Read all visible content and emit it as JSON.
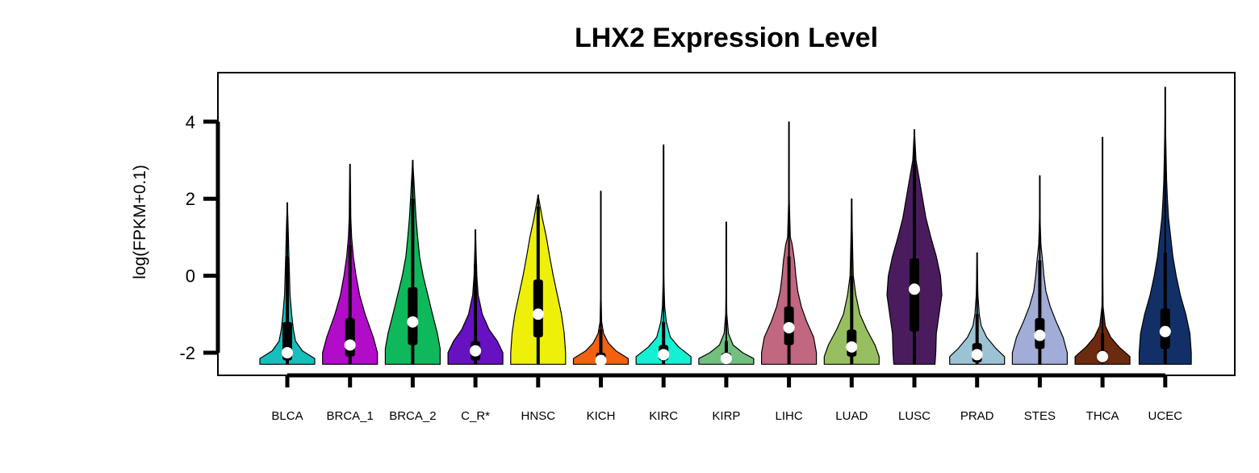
{
  "chart_data": {
    "type": "violin",
    "title": "LHX2 Expression Level",
    "ylabel": "log(FPKM+0.1)",
    "xlabel": "",
    "ylim": [
      -2.6,
      5.2
    ],
    "yticks": [
      -2,
      0,
      2,
      4
    ],
    "grid": false,
    "legend": "none",
    "groups": [
      {
        "name": "BLCA",
        "color": "#17BEBB",
        "min": -2.3,
        "max": 1.9,
        "q1": -2.2,
        "q3": -1.2,
        "median": -2.0,
        "lower_whisker": -2.3,
        "upper_whisker": 0.5,
        "density": [
          [
            -2.3,
            1.0
          ],
          [
            -2.15,
            1.0
          ],
          [
            -1.95,
            0.55
          ],
          [
            -1.7,
            0.3
          ],
          [
            -1.4,
            0.22
          ],
          [
            -1.0,
            0.16
          ],
          [
            -0.5,
            0.1
          ],
          [
            0.0,
            0.08
          ],
          [
            0.5,
            0.06
          ],
          [
            1.0,
            0.04
          ],
          [
            1.5,
            0.02
          ],
          [
            1.9,
            0.0
          ]
        ]
      },
      {
        "name": "BRCA_1",
        "color": "#B10CC8",
        "min": -2.3,
        "max": 2.9,
        "q1": -2.1,
        "q3": -1.1,
        "median": -1.8,
        "lower_whisker": -2.3,
        "upper_whisker": 0.8,
        "density": [
          [
            -2.3,
            1.0
          ],
          [
            -2.0,
            1.0
          ],
          [
            -1.6,
            0.85
          ],
          [
            -1.0,
            0.55
          ],
          [
            -0.5,
            0.35
          ],
          [
            0.0,
            0.22
          ],
          [
            0.5,
            0.12
          ],
          [
            1.0,
            0.06
          ],
          [
            1.5,
            0.03
          ],
          [
            2.2,
            0.02
          ],
          [
            2.9,
            0.0
          ]
        ]
      },
      {
        "name": "BRCA_2",
        "color": "#0FB85A",
        "min": -2.3,
        "max": 3.0,
        "q1": -1.8,
        "q3": -0.3,
        "median": -1.2,
        "lower_whisker": -2.3,
        "upper_whisker": 2.0,
        "density": [
          [
            -2.3,
            1.0
          ],
          [
            -1.9,
            1.0
          ],
          [
            -1.5,
            0.9
          ],
          [
            -1.0,
            0.72
          ],
          [
            -0.5,
            0.55
          ],
          [
            0.0,
            0.38
          ],
          [
            0.5,
            0.25
          ],
          [
            1.0,
            0.18
          ],
          [
            1.5,
            0.12
          ],
          [
            2.0,
            0.08
          ],
          [
            2.5,
            0.04
          ],
          [
            3.0,
            0.0
          ]
        ]
      },
      {
        "name": "C_R*",
        "color": "#6611C2",
        "min": -2.3,
        "max": 1.2,
        "q1": -2.2,
        "q3": -1.7,
        "median": -1.95,
        "lower_whisker": -2.3,
        "upper_whisker": 0.3,
        "density": [
          [
            -2.3,
            1.0
          ],
          [
            -2.0,
            1.0
          ],
          [
            -1.7,
            0.8
          ],
          [
            -1.4,
            0.5
          ],
          [
            -1.0,
            0.25
          ],
          [
            -0.5,
            0.1
          ],
          [
            0.0,
            0.05
          ],
          [
            0.5,
            0.03
          ],
          [
            1.2,
            0.0
          ]
        ]
      },
      {
        "name": "HNSC",
        "color": "#EEF00A",
        "min": -2.3,
        "max": 2.1,
        "q1": -1.6,
        "q3": -0.1,
        "median": -1.0,
        "lower_whisker": -2.3,
        "upper_whisker": 1.8,
        "density": [
          [
            -2.3,
            1.0
          ],
          [
            -2.0,
            1.0
          ],
          [
            -1.5,
            0.95
          ],
          [
            -1.0,
            0.85
          ],
          [
            -0.5,
            0.7
          ],
          [
            0.0,
            0.55
          ],
          [
            0.5,
            0.42
          ],
          [
            1.0,
            0.3
          ],
          [
            1.5,
            0.15
          ],
          [
            2.1,
            0.0
          ]
        ]
      },
      {
        "name": "KICH",
        "color": "#F26012",
        "min": -2.3,
        "max": 2.2,
        "q1": -2.3,
        "q3": -2.0,
        "median": -2.2,
        "lower_whisker": -2.3,
        "upper_whisker": -1.4,
        "density": [
          [
            -2.3,
            1.0
          ],
          [
            -2.15,
            1.0
          ],
          [
            -1.95,
            0.55
          ],
          [
            -1.75,
            0.28
          ],
          [
            -1.5,
            0.1
          ],
          [
            -1.2,
            0.03
          ],
          [
            -0.5,
            0.01
          ],
          [
            2.2,
            0.0
          ]
        ]
      },
      {
        "name": "KIRC",
        "color": "#13F0D2",
        "min": -2.3,
        "max": 3.4,
        "q1": -2.2,
        "q3": -1.8,
        "median": -2.05,
        "lower_whisker": -2.3,
        "upper_whisker": -1.2,
        "density": [
          [
            -2.3,
            1.0
          ],
          [
            -2.1,
            1.0
          ],
          [
            -1.85,
            0.55
          ],
          [
            -1.6,
            0.25
          ],
          [
            -1.2,
            0.1
          ],
          [
            -0.8,
            0.04
          ],
          [
            0.0,
            0.01
          ],
          [
            3.4,
            0.0
          ]
        ]
      },
      {
        "name": "KIRP",
        "color": "#72BF7E",
        "min": -2.3,
        "max": 1.4,
        "q1": -2.25,
        "q3": -2.0,
        "median": -2.15,
        "lower_whisker": -2.3,
        "upper_whisker": -1.7,
        "density": [
          [
            -2.3,
            1.0
          ],
          [
            -2.15,
            1.0
          ],
          [
            -2.0,
            0.6
          ],
          [
            -1.8,
            0.25
          ],
          [
            -1.5,
            0.08
          ],
          [
            -1.0,
            0.02
          ],
          [
            -0.5,
            0.01
          ],
          [
            1.4,
            0.0
          ]
        ]
      },
      {
        "name": "LIHC",
        "color": "#C16780",
        "min": -2.3,
        "max": 4.0,
        "q1": -1.8,
        "q3": -0.8,
        "median": -1.35,
        "lower_whisker": -2.3,
        "upper_whisker": 0.5,
        "density": [
          [
            -2.3,
            1.0
          ],
          [
            -2.0,
            1.0
          ],
          [
            -1.6,
            0.9
          ],
          [
            -1.2,
            0.65
          ],
          [
            -0.8,
            0.45
          ],
          [
            -0.4,
            0.32
          ],
          [
            0.0,
            0.25
          ],
          [
            0.4,
            0.2
          ],
          [
            0.8,
            0.12
          ],
          [
            1.0,
            0.05
          ],
          [
            2.0,
            0.01
          ],
          [
            4.0,
            0.0
          ]
        ]
      },
      {
        "name": "LUAD",
        "color": "#97BF60",
        "min": -2.3,
        "max": 2.0,
        "q1": -2.1,
        "q3": -1.4,
        "median": -1.85,
        "lower_whisker": -2.3,
        "upper_whisker": 0.0,
        "density": [
          [
            -2.3,
            1.0
          ],
          [
            -2.1,
            1.0
          ],
          [
            -1.8,
            0.85
          ],
          [
            -1.4,
            0.55
          ],
          [
            -1.0,
            0.3
          ],
          [
            -0.5,
            0.15
          ],
          [
            0.0,
            0.06
          ],
          [
            0.5,
            0.04
          ],
          [
            1.2,
            0.02
          ],
          [
            2.0,
            0.0
          ]
        ]
      },
      {
        "name": "LUSC",
        "color": "#4A1C5E",
        "min": -2.3,
        "max": 3.8,
        "q1": -1.45,
        "q3": 0.45,
        "median": -0.35,
        "lower_whisker": -2.3,
        "upper_whisker": 2.9,
        "density": [
          [
            -2.3,
            0.75
          ],
          [
            -2.0,
            0.78
          ],
          [
            -1.5,
            0.8
          ],
          [
            -1.0,
            0.9
          ],
          [
            -0.5,
            1.0
          ],
          [
            0.0,
            0.95
          ],
          [
            0.5,
            0.8
          ],
          [
            1.0,
            0.6
          ],
          [
            1.5,
            0.42
          ],
          [
            2.0,
            0.3
          ],
          [
            2.5,
            0.18
          ],
          [
            3.0,
            0.06
          ],
          [
            3.8,
            0.0
          ]
        ]
      },
      {
        "name": "PRAD",
        "color": "#9CC3D4",
        "min": -2.3,
        "max": 0.6,
        "q1": -2.25,
        "q3": -1.75,
        "median": -2.05,
        "lower_whisker": -2.3,
        "upper_whisker": -1.0,
        "density": [
          [
            -2.3,
            1.0
          ],
          [
            -2.1,
            1.0
          ],
          [
            -1.9,
            0.7
          ],
          [
            -1.6,
            0.35
          ],
          [
            -1.3,
            0.15
          ],
          [
            -1.0,
            0.08
          ],
          [
            -0.5,
            0.03
          ],
          [
            0.6,
            0.0
          ]
        ]
      },
      {
        "name": "STES",
        "color": "#A1ADD6",
        "min": -2.3,
        "max": 2.6,
        "q1": -1.9,
        "q3": -1.1,
        "median": -1.55,
        "lower_whisker": -2.3,
        "upper_whisker": 0.4,
        "density": [
          [
            -2.3,
            1.0
          ],
          [
            -2.0,
            1.0
          ],
          [
            -1.6,
            0.85
          ],
          [
            -1.2,
            0.6
          ],
          [
            -0.8,
            0.38
          ],
          [
            -0.4,
            0.22
          ],
          [
            0.0,
            0.15
          ],
          [
            0.4,
            0.1
          ],
          [
            0.8,
            0.04
          ],
          [
            1.5,
            0.01
          ],
          [
            2.6,
            0.0
          ]
        ]
      },
      {
        "name": "THCA",
        "color": "#6C2A0E",
        "min": -2.3,
        "max": 3.6,
        "q1": -2.25,
        "q3": -1.95,
        "median": -2.1,
        "lower_whisker": -2.3,
        "upper_whisker": -1.5,
        "density": [
          [
            -2.3,
            1.0
          ],
          [
            -2.1,
            1.0
          ],
          [
            -1.85,
            0.6
          ],
          [
            -1.6,
            0.3
          ],
          [
            -1.3,
            0.1
          ],
          [
            -0.8,
            0.02
          ],
          [
            0.0,
            0.01
          ],
          [
            3.6,
            0.0
          ]
        ]
      },
      {
        "name": "UCEC",
        "color": "#123067",
        "min": -2.3,
        "max": 4.9,
        "q1": -1.9,
        "q3": -0.85,
        "median": -1.45,
        "lower_whisker": -2.3,
        "upper_whisker": 0.6,
        "density": [
          [
            -2.3,
            0.95
          ],
          [
            -2.0,
            0.95
          ],
          [
            -1.5,
            0.9
          ],
          [
            -1.0,
            0.75
          ],
          [
            -0.5,
            0.55
          ],
          [
            0.0,
            0.4
          ],
          [
            0.5,
            0.28
          ],
          [
            1.0,
            0.2
          ],
          [
            1.5,
            0.12
          ],
          [
            2.0,
            0.08
          ],
          [
            2.5,
            0.05
          ],
          [
            3.2,
            0.03
          ],
          [
            4.0,
            0.01
          ],
          [
            4.9,
            0.0
          ]
        ]
      }
    ]
  }
}
